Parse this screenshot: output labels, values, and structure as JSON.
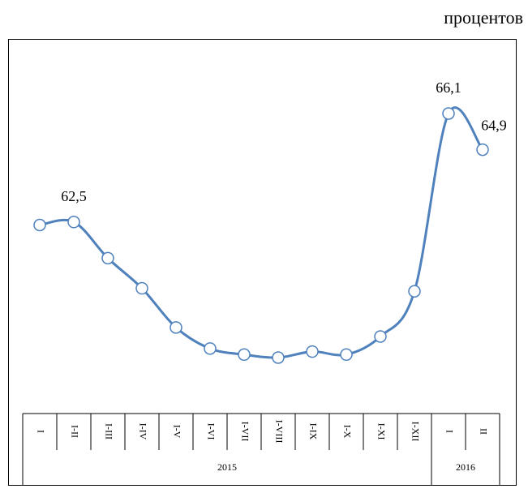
{
  "chart_data": {
    "type": "line",
    "unit_label": "процентов",
    "categories": [
      "I",
      "I-II",
      "I-III",
      "I-IV",
      "I-V",
      "I-VI",
      "I-VII",
      "I-VIII",
      "I-IX",
      "I-X",
      "I-XI",
      "I-XII",
      "I",
      "II"
    ],
    "groups": [
      {
        "label": "2015",
        "count": 12
      },
      {
        "label": "2016",
        "count": 2
      }
    ],
    "values": [
      62.4,
      62.5,
      61.3,
      60.3,
      59.0,
      58.3,
      58.1,
      58.0,
      58.2,
      58.1,
      58.7,
      60.2,
      66.1,
      64.9
    ],
    "value_labels": [
      null,
      "62,5",
      null,
      null,
      null,
      null,
      null,
      null,
      null,
      null,
      null,
      null,
      "66,1",
      "64,9"
    ],
    "color": "#4f81bd"
  }
}
